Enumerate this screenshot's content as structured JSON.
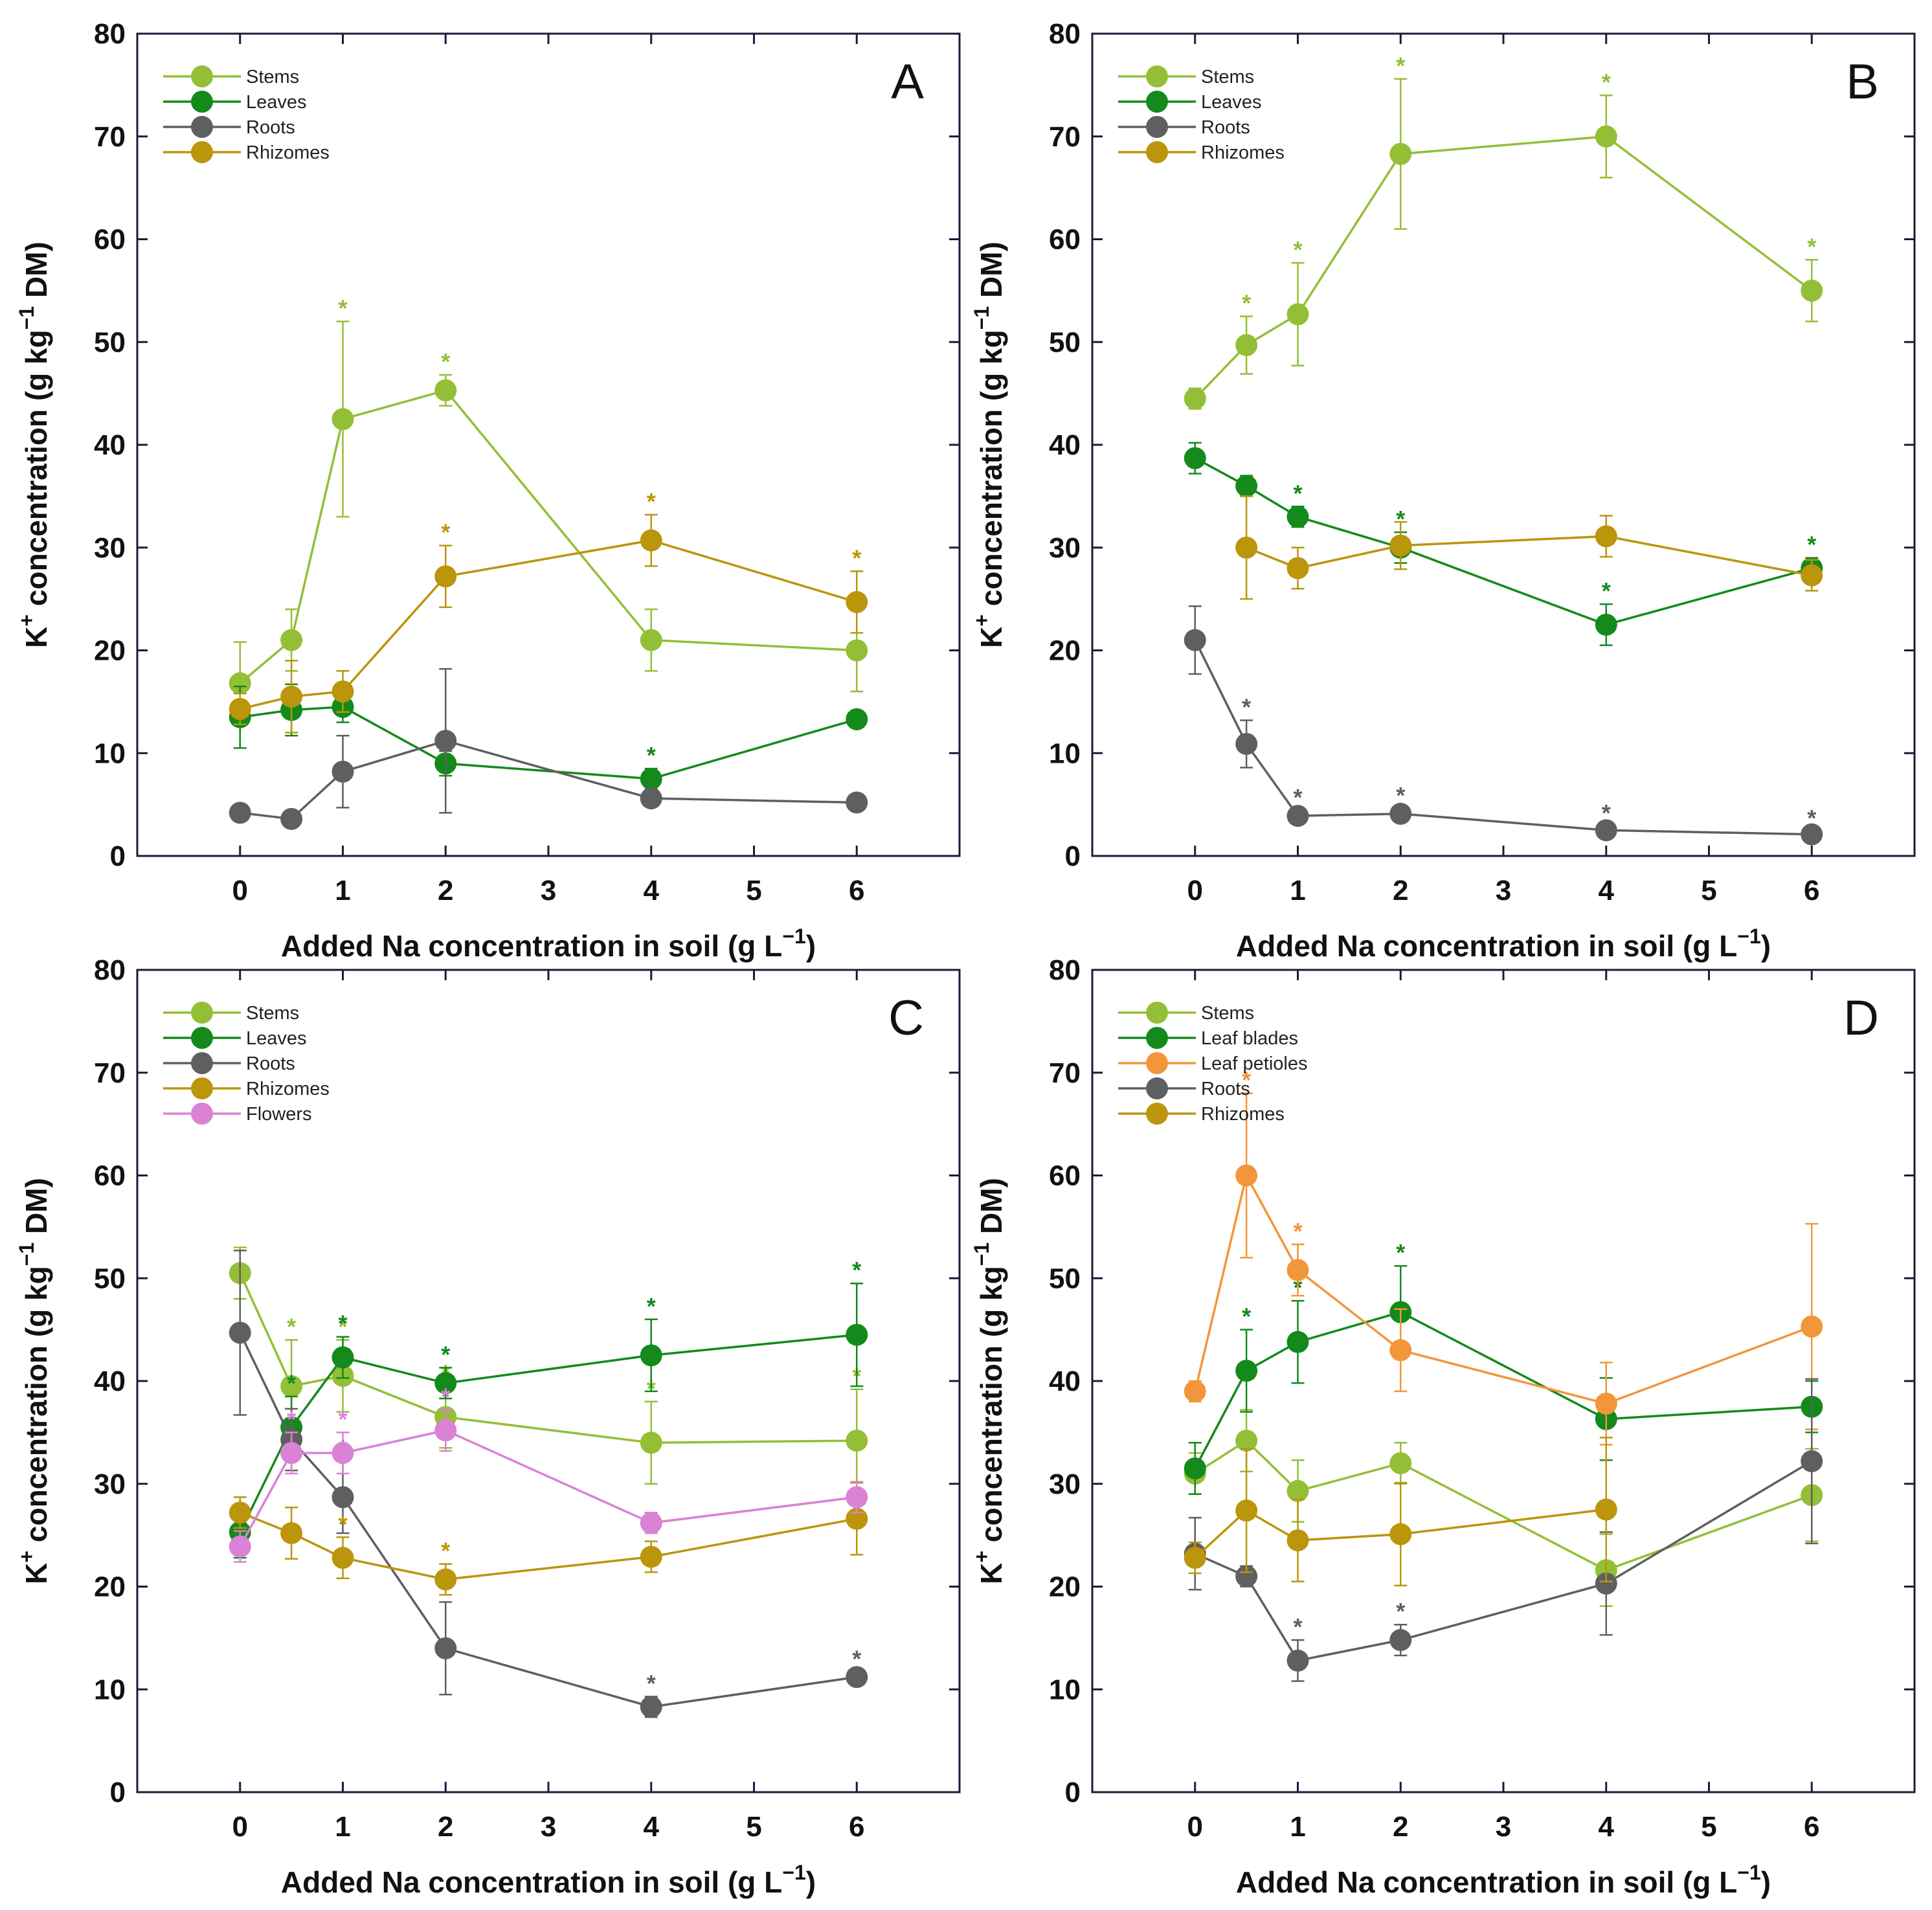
{
  "chart_data": [
    {
      "panel": "A",
      "type": "line",
      "xlabel": "Added Na concentration in soil (g L",
      "xlabel_sup": "−1",
      "xlabel_end": ")",
      "ylabel": "K",
      "ylabel_sup1": "+",
      "ylabel_mid": " concentration (g kg",
      "ylabel_sup2": "−1",
      "ylabel_end": " DM)",
      "xlim": [
        -1,
        7
      ],
      "ylim": [
        0,
        80
      ],
      "xticks": [
        0,
        1,
        2,
        3,
        4,
        5,
        6
      ],
      "yticks": [
        0,
        10,
        20,
        30,
        40,
        50,
        60,
        70,
        80
      ],
      "legend_position": "top-left",
      "x": [
        0,
        0.5,
        1,
        2,
        4,
        6
      ],
      "series": [
        {
          "name": "Stems",
          "color": "#93bf36",
          "values": [
            16.8,
            21,
            42.5,
            45.3,
            21,
            20
          ],
          "errors": [
            4,
            3,
            9.5,
            1.5,
            3,
            4
          ],
          "stars": [
            false,
            false,
            true,
            true,
            false,
            false
          ]
        },
        {
          "name": "Leaves",
          "color": "#138a1b",
          "values": [
            13.5,
            14.2,
            14.5,
            9,
            7.5,
            13.3
          ],
          "errors": [
            3,
            2.5,
            1.5,
            1.2,
            1,
            0.5
          ],
          "stars": [
            false,
            false,
            false,
            true,
            true,
            false
          ]
        },
        {
          "name": "Roots",
          "color": "#5f5f61",
          "values": [
            4.2,
            3.6,
            8.2,
            11.2,
            5.6,
            5.2
          ],
          "errors": [
            0.5,
            0.5,
            3.5,
            7,
            0.5,
            0.3
          ],
          "stars": [
            false,
            false,
            false,
            false,
            false,
            false
          ]
        },
        {
          "name": "Rhizomes",
          "color": "#bb950c",
          "values": [
            14.3,
            15.5,
            16,
            27.2,
            30.7,
            24.7
          ],
          "errors": [
            1.5,
            3.5,
            2,
            3,
            2.5,
            3
          ],
          "stars": [
            false,
            false,
            false,
            true,
            true,
            true
          ]
        }
      ],
      "legend": [
        "Stems",
        "Leaves",
        "Roots",
        "Rhizomes"
      ]
    },
    {
      "panel": "B",
      "type": "line",
      "xlabel": "Added Na concentration in soil (g L",
      "xlabel_sup": "−1",
      "xlabel_end": ")",
      "ylabel": "K",
      "ylabel_sup1": "+",
      "ylabel_mid": " concentration (g kg",
      "ylabel_sup2": "−1",
      "ylabel_end": " DM)",
      "xlim": [
        -1,
        7
      ],
      "ylim": [
        0,
        80
      ],
      "xticks": [
        0,
        1,
        2,
        3,
        4,
        5,
        6
      ],
      "yticks": [
        0,
        10,
        20,
        30,
        40,
        50,
        60,
        70,
        80
      ],
      "legend_position": "top-left",
      "x": [
        0,
        0.5,
        1,
        2,
        4,
        6
      ],
      "series": [
        {
          "name": "Stems",
          "color": "#93bf36",
          "values": [
            44.5,
            49.7,
            52.7,
            68.3,
            70,
            55
          ],
          "errors": [
            1,
            2.8,
            5,
            7.3,
            4,
            3
          ],
          "stars": [
            false,
            true,
            true,
            true,
            true,
            true
          ]
        },
        {
          "name": "Leaves",
          "color": "#138a1b",
          "values": [
            38.7,
            36,
            33,
            30,
            22.5,
            28
          ],
          "errors": [
            1.5,
            1,
            1,
            1.5,
            2,
            1
          ],
          "stars": [
            false,
            false,
            true,
            true,
            true,
            true
          ]
        },
        {
          "name": "Roots",
          "color": "#5f5f61",
          "values": [
            21,
            10.9,
            3.9,
            4.1,
            2.5,
            2.1
          ],
          "errors": [
            3.3,
            2.3,
            0.5,
            0.5,
            0.4,
            0.3
          ],
          "stars": [
            false,
            true,
            true,
            true,
            true,
            true
          ]
        },
        {
          "name": "Rhizomes",
          "color": "#bb950c",
          "values": [
            null,
            30,
            28,
            30.2,
            31.1,
            27.3
          ],
          "errors": [
            null,
            5,
            2,
            2.3,
            2,
            1.5
          ],
          "stars": [
            false,
            false,
            false,
            false,
            false,
            false
          ]
        }
      ],
      "legend": [
        "Stems",
        "Leaves",
        "Roots",
        "Rhizomes"
      ]
    },
    {
      "panel": "C",
      "type": "line",
      "xlabel": "Added Na concentration in soil (g L",
      "xlabel_sup": "−1",
      "xlabel_end": ")",
      "ylabel": "K",
      "ylabel_sup1": "+",
      "ylabel_mid": " concentration (g kg",
      "ylabel_sup2": "−1",
      "ylabel_end": " DM)",
      "xlim": [
        -1,
        7
      ],
      "ylim": [
        0,
        80
      ],
      "xticks": [
        0,
        1,
        2,
        3,
        4,
        5,
        6
      ],
      "yticks": [
        0,
        10,
        20,
        30,
        40,
        50,
        60,
        70,
        80
      ],
      "legend_position": "top-left",
      "x": [
        0,
        0.5,
        1,
        2,
        4,
        6
      ],
      "series": [
        {
          "name": "Stems",
          "color": "#93bf36",
          "values": [
            50.5,
            39.5,
            40.5,
            36.5,
            34,
            34.2
          ],
          "errors": [
            2.5,
            4.5,
            3.5,
            3,
            4,
            5
          ],
          "stars": [
            false,
            true,
            true,
            true,
            true,
            true
          ]
        },
        {
          "name": "Leaves",
          "color": "#138a1b",
          "values": [
            25.3,
            35.5,
            42.3,
            39.8,
            42.5,
            44.5
          ],
          "errors": [
            2.5,
            3,
            2,
            1.5,
            3.5,
            5
          ],
          "stars": [
            false,
            true,
            true,
            true,
            true,
            true
          ]
        },
        {
          "name": "Roots",
          "color": "#5f5f61",
          "values": [
            44.7,
            34.3,
            28.7,
            14,
            8.3,
            11.2
          ],
          "errors": [
            8,
            3,
            3.5,
            4.5,
            1,
            0.5
          ],
          "stars": [
            false,
            false,
            true,
            true,
            true,
            true
          ]
        },
        {
          "name": "Rhizomes",
          "color": "#bb950c",
          "values": [
            27.2,
            25.2,
            22.8,
            20.7,
            22.9,
            26.6
          ],
          "errors": [
            1.5,
            2.5,
            2,
            1.5,
            1.5,
            3.5
          ],
          "stars": [
            false,
            false,
            true,
            true,
            true,
            false
          ]
        },
        {
          "name": "Flowers",
          "color": "#d982d6",
          "values": [
            23.9,
            33,
            33,
            35.2,
            26.2,
            28.7
          ],
          "errors": [
            1.5,
            2,
            2,
            2,
            1,
            1.5
          ],
          "stars": [
            false,
            true,
            true,
            true,
            false,
            false
          ]
        }
      ],
      "legend": [
        "Stems",
        "Leaves",
        "Roots",
        "Rhizomes",
        "Flowers"
      ]
    },
    {
      "panel": "D",
      "type": "line",
      "xlabel": "Added Na concentration in soil (g L",
      "xlabel_sup": "−1",
      "xlabel_end": ")",
      "ylabel": "K",
      "ylabel_sup1": "+",
      "ylabel_mid": " concentration (g kg",
      "ylabel_sup2": "−1",
      "ylabel_end": " DM)",
      "xlim": [
        -1,
        7
      ],
      "ylim": [
        0,
        80
      ],
      "xticks": [
        0,
        1,
        2,
        3,
        4,
        5,
        6
      ],
      "yticks": [
        0,
        10,
        20,
        30,
        40,
        50,
        60,
        70,
        80
      ],
      "legend_position": "top-left",
      "x": [
        0,
        0.5,
        1,
        2,
        4,
        6
      ],
      "series": [
        {
          "name": "Stems",
          "color": "#93bf36",
          "values": [
            31,
            34.2,
            29.3,
            32,
            21.6,
            28.9
          ],
          "errors": [
            2,
            3,
            3,
            2,
            3.5,
            4.5
          ],
          "stars": [
            false,
            false,
            false,
            false,
            false,
            false
          ]
        },
        {
          "name": "Leaf blades",
          "color": "#138a1b",
          "values": [
            31.5,
            41,
            43.8,
            46.7,
            36.3,
            37.5
          ],
          "errors": [
            2.5,
            4,
            4,
            4.5,
            4,
            2.5
          ],
          "stars": [
            false,
            true,
            true,
            true,
            false,
            false
          ]
        },
        {
          "name": "Leaf petioles",
          "color": "#f2963a",
          "values": [
            39,
            60,
            50.8,
            43,
            37.8,
            45.3
          ],
          "errors": [
            1,
            8,
            2.5,
            4,
            4,
            10
          ],
          "stars": [
            false,
            true,
            true,
            false,
            false,
            false
          ]
        },
        {
          "name": "Roots",
          "color": "#5f5f61",
          "values": [
            23.2,
            21,
            12.8,
            14.8,
            20.3,
            32.2
          ],
          "errors": [
            3.5,
            1,
            2,
            1.5,
            5,
            8
          ],
          "stars": [
            false,
            false,
            true,
            true,
            false,
            false
          ]
        },
        {
          "name": "Rhizomes",
          "color": "#bb950c",
          "values": [
            22.8,
            27.4,
            24.5,
            25.1,
            27.5,
            null
          ],
          "errors": [
            1.5,
            6,
            4,
            5,
            7,
            null
          ],
          "stars": [
            false,
            false,
            false,
            false,
            false,
            false
          ]
        }
      ],
      "legend": [
        "Stems",
        "Leaf blades",
        "Leaf petioles",
        "Roots",
        "Rhizomes"
      ]
    }
  ]
}
